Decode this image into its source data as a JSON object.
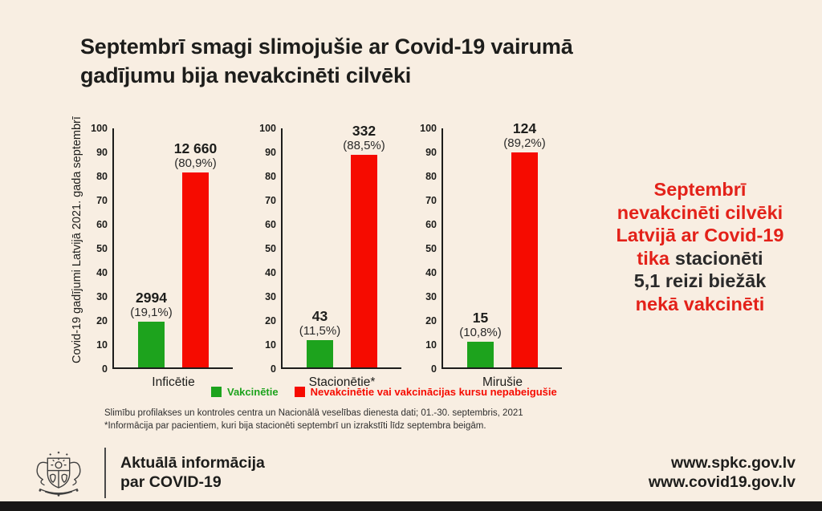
{
  "header": {
    "title_line1": "Septembrī smagi slimojušie ar Covid-19 vairumā",
    "title_line2": "gadījumu bija nevakcinēti cilvēki"
  },
  "chart_data": {
    "type": "bar",
    "title": "Septembrī smagi slimojušie ar Covid-19 vairumā gadījumu bija nevakcinēti cilvēki",
    "ylabel": "Covid-19 gadījumi Latvijā 2021. gada septembrī",
    "ylim": [
      0,
      100
    ],
    "y_ticks": [
      "100",
      "90",
      "80",
      "70",
      "60",
      "50",
      "40",
      "30",
      "20",
      "10",
      "0"
    ],
    "grid": false,
    "legend_position": "bottom",
    "legend": [
      {
        "label": "Vakcinētie",
        "color": "#1da31d"
      },
      {
        "label": "Nevakcinētie vai vakcinācijas kursu nepabeigušie",
        "color": "#f60b00"
      }
    ],
    "charts": [
      {
        "category": "Inficētie",
        "series": [
          {
            "name": "Vakcinētie",
            "count": 2994,
            "pct": 19.1,
            "count_label": "2994",
            "pct_label": "(19,1%)"
          },
          {
            "name": "Nevakcinētie vai vakcinācijas kursu nepabeigušie",
            "count": 12660,
            "pct": 80.9,
            "count_label": "12 660",
            "pct_label": "(80,9%)"
          }
        ]
      },
      {
        "category": "Stacionētie*",
        "series": [
          {
            "name": "Vakcinētie",
            "count": 43,
            "pct": 11.5,
            "count_label": "43",
            "pct_label": "(11,5%)"
          },
          {
            "name": "Nevakcinētie vai vakcinācijas kursu nepabeigušie",
            "count": 332,
            "pct": 88.5,
            "count_label": "332",
            "pct_label": "(88,5%)"
          }
        ]
      },
      {
        "category": "Mirušie",
        "series": [
          {
            "name": "Vakcinētie",
            "count": 15,
            "pct": 10.8,
            "count_label": "15",
            "pct_label": "(10,8%)"
          },
          {
            "name": "Nevakcinētie vai vakcinācijas kursu nepabeigušie",
            "count": 124,
            "pct": 89.2,
            "count_label": "124",
            "pct_label": "(89,2%)"
          }
        ]
      }
    ]
  },
  "footnotes": {
    "line1": "Slimību profilakses un kontroles centra un Nacionālā veselības dienesta dati; 01.-30. septembris, 2021",
    "line2": "*Informācija par pacientiem, kuri bija stacionēti septembrī un izrakstīti līdz septembra beigām."
  },
  "callout": {
    "line1": "Septembrī",
    "line2": "nevakcinēti cilvēki",
    "line3": "Latvijā ar Covid-19",
    "line4_red": "tika",
    "line4_dark": "stacionēti",
    "line5": "5,1 reizi biežāk",
    "line6": "nekā vakcinēti"
  },
  "footer": {
    "info_line1": "Aktuālā informācija",
    "info_line2": "par COVID-19",
    "url1": "www.spkc.gov.lv",
    "url2": "www.covid19.gov.lv",
    "logo": "latvia-coat-of-arms"
  },
  "colors": {
    "background": "#f8eee2",
    "text": "#1d1d1b",
    "bar_green": "#1da31d",
    "bar_red": "#f60b00",
    "callout_red": "#e32119",
    "bottom_bar": "#181716"
  }
}
